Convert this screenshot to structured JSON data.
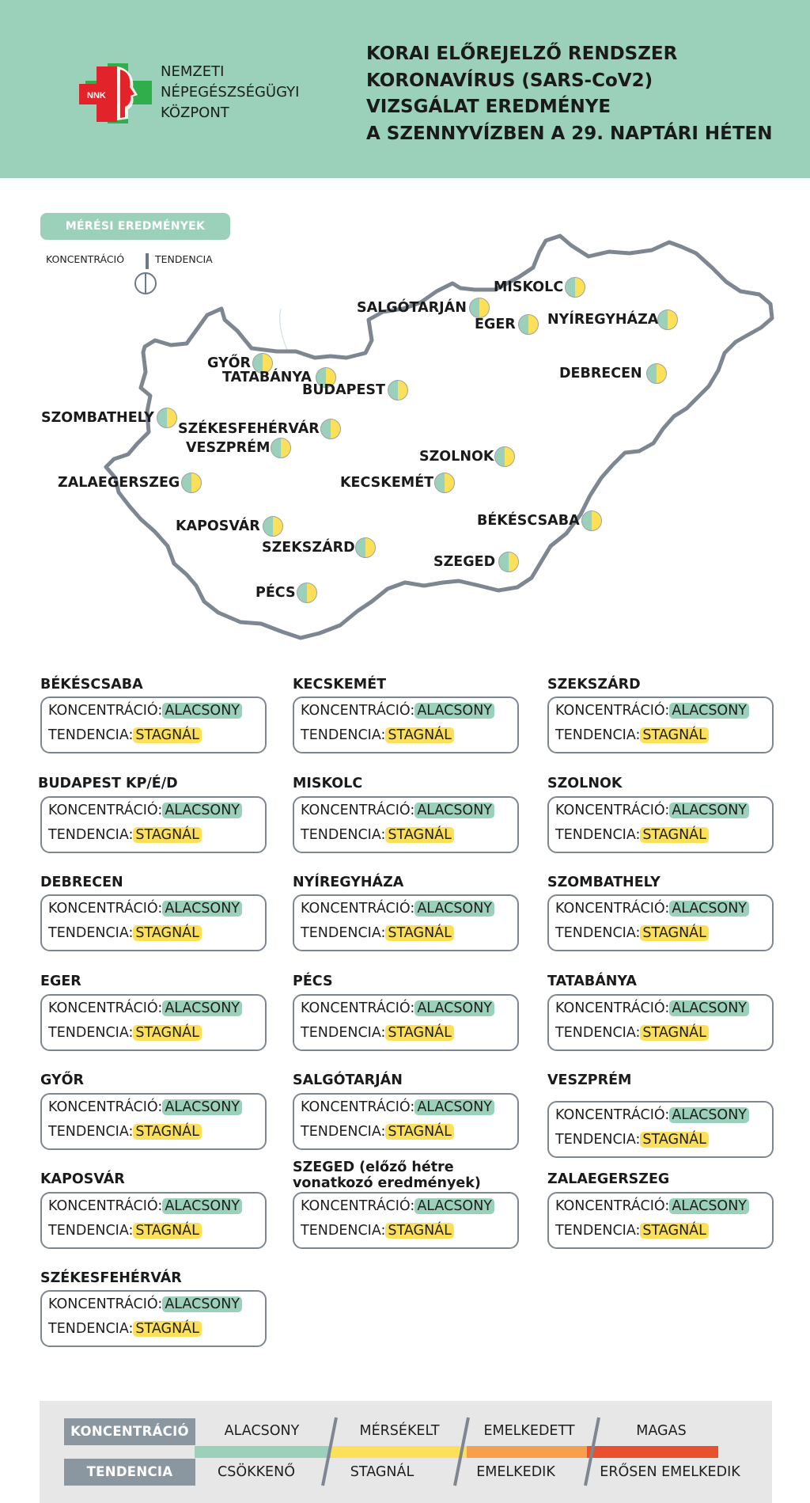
{
  "header": {
    "org_lines": [
      "NEMZETI",
      "NÉPEGÉSZSÉGÜGYI",
      "KÖZPONT"
    ],
    "logo_abbr": "NNK",
    "title_lines": [
      "KORAI ELŐREJELZŐ RENDSZER",
      "KORONAVÍRUS (SARS-CoV2)",
      "VIZSGÁLAT EREDMÉNYE",
      "A SZENNYVÍZBEN A 29. NAPTÁRI HÉTEN"
    ]
  },
  "map": {
    "badge": "MÉRÉSI EREDMÉNYEK",
    "key_left": "KONCENTRÁCIÓ",
    "key_right": "TENDENCIA",
    "cities": [
      {
        "name": "MISKOLC"
      },
      {
        "name": "SALGÓTARJÁN"
      },
      {
        "name": "EGER"
      },
      {
        "name": "NYÍREGYHÁZA"
      },
      {
        "name": "GYŐR"
      },
      {
        "name": "TATABÁNYA"
      },
      {
        "name": "BUDAPEST"
      },
      {
        "name": "DEBRECEN"
      },
      {
        "name": "SZOMBATHELY"
      },
      {
        "name": "SZÉKESFEHÉRVÁR"
      },
      {
        "name": "VESZPRÉM"
      },
      {
        "name": "SZOLNOK"
      },
      {
        "name": "ZALAEGERSZEG"
      },
      {
        "name": "KECSKEMÉT"
      },
      {
        "name": "BÉKÉSCSABA"
      },
      {
        "name": "KAPOSVÁR"
      },
      {
        "name": "SZEKSZÁRD"
      },
      {
        "name": "SZEGED"
      },
      {
        "name": "PÉCS"
      }
    ]
  },
  "cards": {
    "concentration_label": "KONCENTRÁCIÓ:",
    "trend_label": "TENDENCIA:",
    "items": [
      {
        "title": "BÉKÉSCSABA",
        "concentration": "ALACSONY",
        "trend": "STAGNÁL"
      },
      {
        "title": "KECSKEMÉT",
        "concentration": "ALACSONY",
        "trend": "STAGNÁL"
      },
      {
        "title": "SZEKSZÁRD",
        "concentration": "ALACSONY",
        "trend": "STAGNÁL"
      },
      {
        "title": "BUDAPEST KP/É/D",
        "concentration": "ALACSONY",
        "trend": "STAGNÁL"
      },
      {
        "title": "MISKOLC",
        "concentration": "ALACSONY",
        "trend": "STAGNÁL"
      },
      {
        "title": "SZOLNOK",
        "concentration": "ALACSONY",
        "trend": "STAGNÁL"
      },
      {
        "title": "DEBRECEN",
        "concentration": "ALACSONY",
        "trend": "STAGNÁL"
      },
      {
        "title": "NYÍREGYHÁZA",
        "concentration": "ALACSONY",
        "trend": "STAGNÁL"
      },
      {
        "title": "SZOMBATHELY",
        "concentration": "ALACSONY",
        "trend": "STAGNÁL"
      },
      {
        "title": "EGER",
        "concentration": "ALACSONY",
        "trend": "STAGNÁL"
      },
      {
        "title": "PÉCS",
        "concentration": "ALACSONY",
        "trend": "STAGNÁL"
      },
      {
        "title": "TATABÁNYA",
        "concentration": "ALACSONY",
        "trend": "STAGNÁL"
      },
      {
        "title": "GYŐR",
        "concentration": "ALACSONY",
        "trend": "STAGNÁL"
      },
      {
        "title": "SALGÓTARJÁN",
        "concentration": "ALACSONY",
        "trend": "STAGNÁL"
      },
      {
        "title": "VESZPRÉM",
        "concentration": "ALACSONY",
        "trend": "STAGNÁL"
      },
      {
        "title": "KAPOSVÁR",
        "concentration": "ALACSONY",
        "trend": "STAGNÁL"
      },
      {
        "title_lines": [
          "SZEGED (előző hétre",
          "vonatkozó eredmények)"
        ],
        "concentration": "ALACSONY",
        "trend": "STAGNÁL"
      },
      {
        "title": "ZALAEGERSZEG",
        "concentration": "ALACSONY",
        "trend": "STAGNÁL"
      },
      {
        "title": "SZÉKESFEHÉRVÁR",
        "concentration": "ALACSONY",
        "trend": "STAGNÁL"
      }
    ]
  },
  "legend": {
    "concentration_label": "KONCENTRÁCIÓ",
    "trend_label": "TENDENCIA",
    "concentration_levels": [
      "ALACSONY",
      "MÉRSÉKELT",
      "EMELKEDETT",
      "MAGAS"
    ],
    "trend_levels": [
      "CSÖKKENŐ",
      "STAGNÁL",
      "EMELKEDIK",
      "ERŐSEN EMELKEDIK"
    ],
    "colors": [
      "#9bd0bb",
      "#fde05a",
      "#f6a04d",
      "#e8502e"
    ]
  },
  "colors": {
    "header_bg": "#9bd0bb",
    "low_highlight": "#9bd0bb",
    "stagnant_highlight": "#fde05a",
    "border_gray": "#7e8791"
  }
}
